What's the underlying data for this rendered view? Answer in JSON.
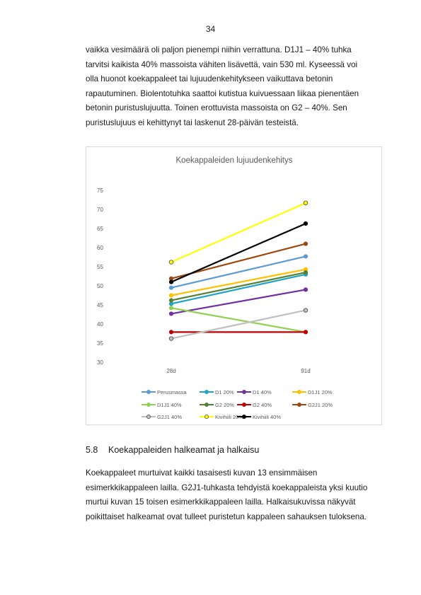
{
  "page_number": "34",
  "paragraph1": [
    "vaikka vesimäärä oli paljon pienempi niihin verrattuna. D1J1 – 40% tuhka",
    "tarvitsi kaikista 40% massoista vähiten lisävettä, vain 530 ml. Kyseessä voi",
    "olla huonot koekappaleet tai lujuudenkehitykseen vaikuttava betonin",
    "rapautuminen. Biolentotuhka saattoi kutistua kuivuessaan liikaa pienentäen",
    "betonin puristuslujuutta. Toinen erottuvista massoista on G2 – 40%. Sen",
    "puristuslujuus ei kehittynyt tai laskenut 28-päivän testeistä."
  ],
  "section": {
    "number": "5.8",
    "title": "Koekappaleiden halkeamat ja halkaisu"
  },
  "paragraph2": [
    "Koekappaleet murtuivat kaikki tasaisesti kuvan 13 ensimmäisen",
    "esimerkkikappaleen lailla. G2J1-tuhkasta tehdyistä koekappaleista yksi kuutio",
    "murtui kuvan 15 toisen esimerkkikappaleen lailla. Halkaisukuvissa näkyvät",
    "poikittaiset halkeamat ovat tulleet puristetun kappaleen sahauksen tuloksena."
  ],
  "chart_data": {
    "type": "line",
    "title": "Koekappaleiden lujuudenkehitys",
    "xlabel": "",
    "ylabel": "",
    "categories": [
      "28d",
      "91d"
    ],
    "ylim": [
      30,
      75
    ],
    "yticks": [
      30,
      35,
      40,
      45,
      50,
      55,
      60,
      65,
      70,
      75
    ],
    "grid": false,
    "legend_position": "bottom",
    "series": [
      {
        "name": "Perusmassa",
        "values": [
          49.5,
          57.7
        ],
        "color": "#5b9bd5",
        "marker": "filled"
      },
      {
        "name": "D1 20%",
        "values": [
          45.3,
          53.0
        ],
        "color": "#1fa3c6",
        "marker": "filled"
      },
      {
        "name": "D1 40%",
        "values": [
          42.7,
          49.0
        ],
        "color": "#7030a0",
        "marker": "filled"
      },
      {
        "name": "D1J1 20%",
        "values": [
          47.5,
          54.3
        ],
        "color": "#ffc000",
        "marker": "filled"
      },
      {
        "name": "D1J1 40%",
        "values": [
          44.2,
          37.9
        ],
        "color": "#92d050",
        "marker": "filled"
      },
      {
        "name": "G2 20%",
        "values": [
          46.2,
          53.5
        ],
        "color": "#548235",
        "marker": "filled"
      },
      {
        "name": "G2 40%",
        "values": [
          37.9,
          37.9
        ],
        "color": "#c00000",
        "marker": "filled"
      },
      {
        "name": "G2J1 20%",
        "values": [
          51.9,
          61.0
        ],
        "color": "#9e480e",
        "marker": "filled"
      },
      {
        "name": "G2J1 40%",
        "values": [
          36.2,
          43.6
        ],
        "color": "#bfbfbf",
        "marker": "open"
      },
      {
        "name": "Kivihiili 20%",
        "values": [
          56.2,
          71.7
        ],
        "color": "#ffff00",
        "marker": "open"
      },
      {
        "name": "Kivihiili 40%",
        "values": [
          51.0,
          66.3
        ],
        "color": "#000000",
        "marker": "filled"
      }
    ]
  }
}
